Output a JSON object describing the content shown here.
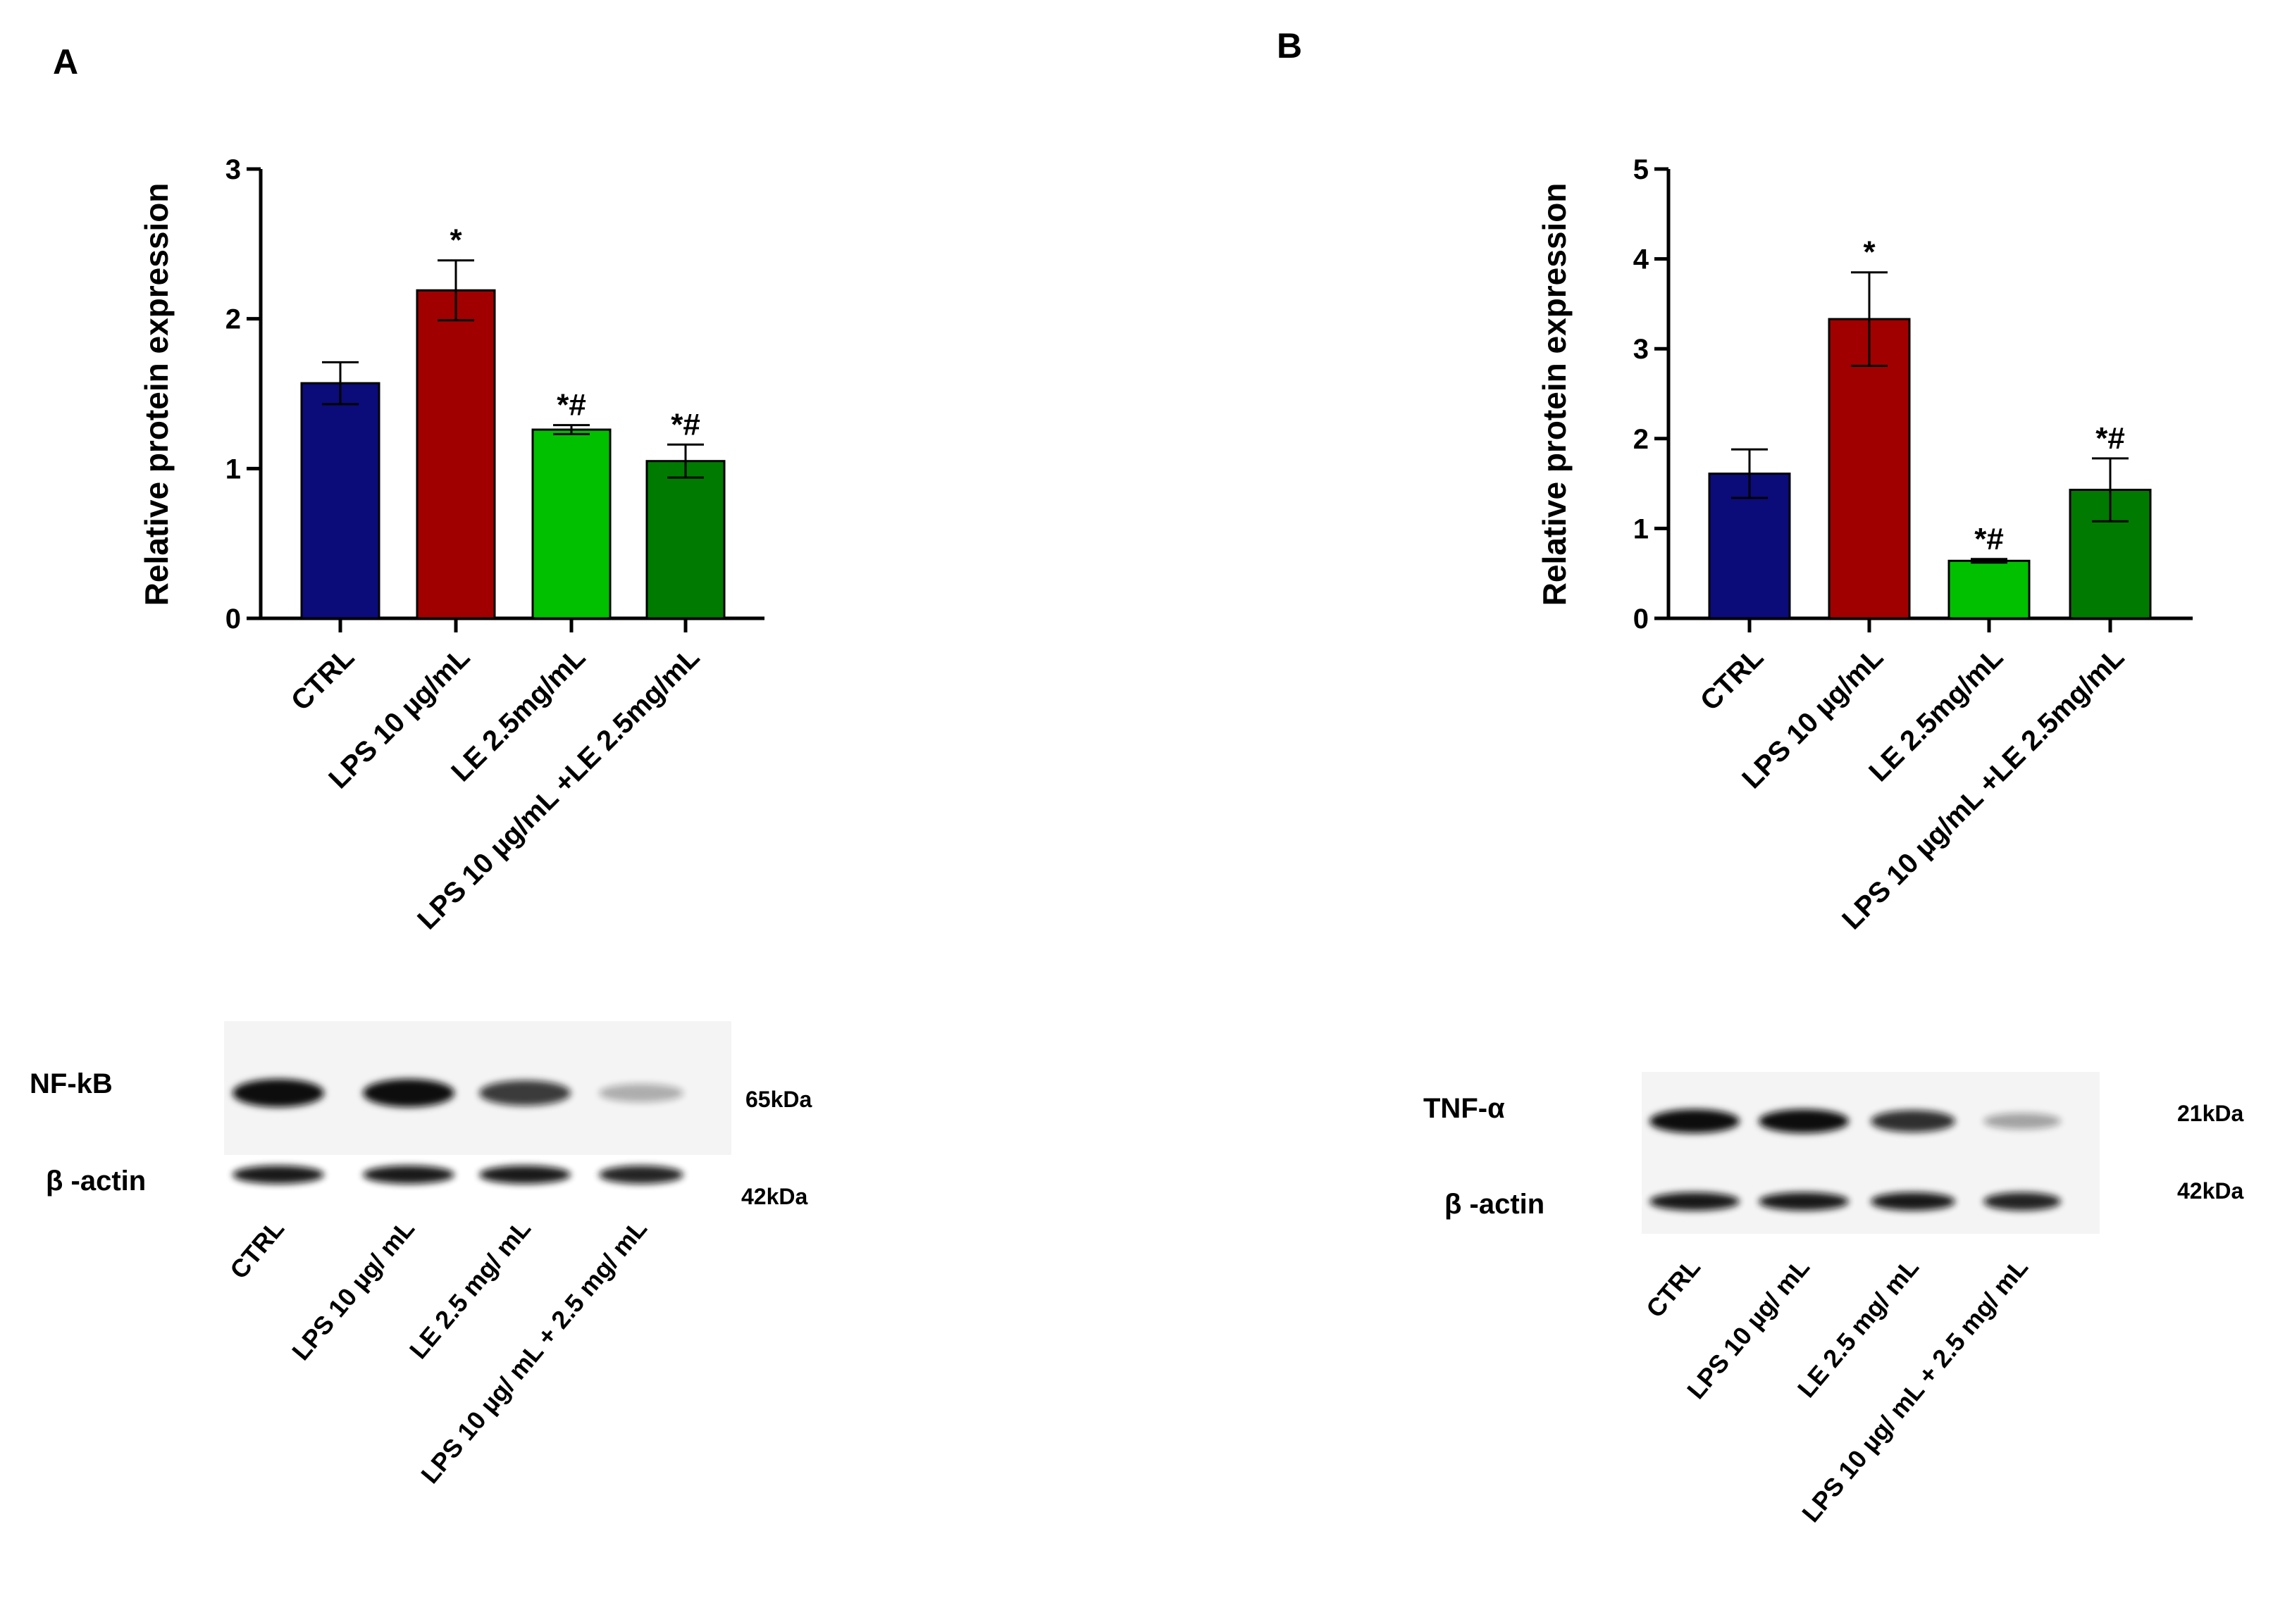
{
  "chart_data": [
    {
      "panel": "A",
      "type": "bar",
      "ylabel": "Relative protein expression",
      "ylim": [
        0,
        3
      ],
      "yticks": [
        0,
        1,
        2,
        3
      ],
      "categories": [
        "CTRL",
        "LPS 10 µg/mL",
        "LE 2.5mg/mL",
        "LPS 10 µg/mL +LE 2.5mg/mL"
      ],
      "values": [
        1.57,
        2.19,
        1.26,
        1.05
      ],
      "errors": [
        0.14,
        0.2,
        0.03,
        0.11
      ],
      "significance": [
        "",
        "*",
        "*#",
        "*#"
      ],
      "colors": [
        "#0b0b7a",
        "#a00000",
        "#00c000",
        "#007a00"
      ],
      "blot": {
        "target_label": "NF-kB",
        "target_kda": "65kDa",
        "control_label": "β -actin",
        "control_kda": "42kDa",
        "lanes": [
          "CTRL",
          "LPS 10 µg/ mL",
          "LE 2.5 mg/ mL",
          "LPS 10 µg/ mL + 2.5 mg/ mL"
        ],
        "target_intensity": [
          1.0,
          1.0,
          0.8,
          0.3
        ],
        "control_intensity": [
          0.95,
          0.95,
          0.95,
          0.9
        ]
      }
    },
    {
      "panel": "B",
      "type": "bar",
      "ylabel": "Relative protein expression",
      "ylim": [
        0,
        5
      ],
      "yticks": [
        0,
        1,
        2,
        3,
        4,
        5
      ],
      "categories": [
        "CTRL",
        "LPS 10 µg/mL",
        "LE 2.5mg/mL",
        "LPS 10 µg/mL +LE 2.5mg/mL"
      ],
      "values": [
        1.61,
        3.33,
        0.64,
        1.43
      ],
      "errors": [
        0.27,
        0.52,
        0.02,
        0.35
      ],
      "significance": [
        "",
        "*",
        "*#",
        "*#"
      ],
      "colors": [
        "#0b0b7a",
        "#a00000",
        "#00c000",
        "#007a00"
      ],
      "blot": {
        "target_label": "TNF-α",
        "target_kda": "21kDa",
        "control_label": "β -actin",
        "control_kda": "42kDa",
        "lanes": [
          "CTRL",
          "LPS 10 µg/ mL",
          "LE 2.5 mg/ mL",
          "LPS 10 µg/ mL + 2.5 mg/ mL"
        ],
        "target_intensity": [
          1.0,
          1.0,
          0.85,
          0.35
        ],
        "control_intensity": [
          0.95,
          0.95,
          0.95,
          0.9
        ]
      }
    }
  ]
}
